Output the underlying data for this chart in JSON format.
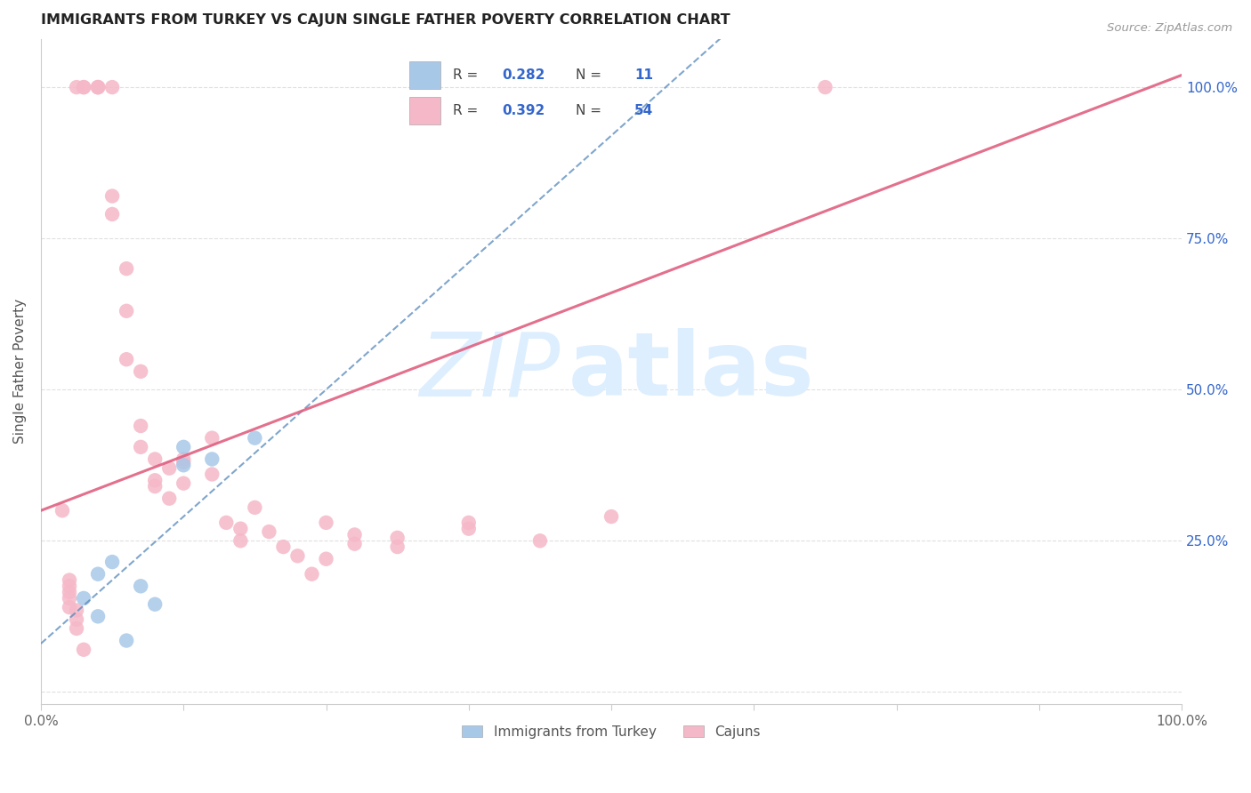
{
  "title": "IMMIGRANTS FROM TURKEY VS CAJUN SINGLE FATHER POVERTY CORRELATION CHART",
  "source": "Source: ZipAtlas.com",
  "ylabel": "Single Father Poverty",
  "legend_blue_label": "Immigrants from Turkey",
  "legend_pink_label": "Cajuns",
  "blue_color": "#a8c8e8",
  "pink_color": "#f5b8c8",
  "blue_line_color": "#5588bb",
  "pink_line_color": "#e06080",
  "blue_line_style": "--",
  "watermark_zip": "ZIP",
  "watermark_atlas": "atlas",
  "watermark_color": "#ddeeff",
  "background_color": "#ffffff",
  "grid_color": "#e0e0e0",
  "title_color": "#222222",
  "right_axis_color": "#3366cc",
  "legend_text_color": "#3366cc",
  "legend_label_color": "#444444",
  "xmin": 0.0,
  "xmax": 0.008,
  "ymin": -0.02,
  "ymax": 1.08,
  "blue_x": [
    0.0003,
    0.0004,
    0.0004,
    0.0005,
    0.0006,
    0.0007,
    0.0008,
    0.001,
    0.001,
    0.0012,
    0.0015
  ],
  "blue_y": [
    0.155,
    0.125,
    0.195,
    0.215,
    0.085,
    0.175,
    0.145,
    0.375,
    0.405,
    0.385,
    0.42
  ],
  "pink_x": [
    0.00025,
    0.0003,
    0.0003,
    0.0004,
    0.0004,
    0.0004,
    0.0005,
    0.0005,
    0.0005,
    0.0006,
    0.0006,
    0.0006,
    0.0007,
    0.0007,
    0.0007,
    0.0008,
    0.0008,
    0.0008,
    0.0009,
    0.0009,
    0.001,
    0.001,
    0.001,
    0.0012,
    0.0012,
    0.0013,
    0.0014,
    0.0014,
    0.0015,
    0.0016,
    0.0017,
    0.0018,
    0.0019,
    0.002,
    0.002,
    0.0022,
    0.0022,
    0.0025,
    0.0025,
    0.003,
    0.003,
    0.0035,
    0.004,
    0.00015,
    0.0002,
    0.0002,
    0.0002,
    0.0002,
    0.0002,
    0.00025,
    0.00025,
    0.00025,
    0.0003,
    0.0055
  ],
  "pink_y": [
    1.0,
    1.0,
    1.0,
    1.0,
    1.0,
    1.0,
    1.0,
    0.82,
    0.79,
    0.7,
    0.63,
    0.55,
    0.53,
    0.44,
    0.405,
    0.385,
    0.35,
    0.34,
    0.32,
    0.37,
    0.385,
    0.345,
    0.38,
    0.36,
    0.42,
    0.28,
    0.25,
    0.27,
    0.305,
    0.265,
    0.24,
    0.225,
    0.195,
    0.22,
    0.28,
    0.245,
    0.26,
    0.255,
    0.24,
    0.27,
    0.28,
    0.25,
    0.29,
    0.3,
    0.165,
    0.185,
    0.175,
    0.155,
    0.14,
    0.135,
    0.12,
    0.105,
    0.07,
    1.0
  ],
  "blue_line_x0": 0.0,
  "blue_line_y0": 0.08,
  "blue_line_x1": 0.004,
  "blue_line_y1": 0.92,
  "pink_line_x0": 0.0,
  "pink_line_y0": 0.3,
  "pink_line_x1": 0.008,
  "pink_line_y1": 1.02
}
